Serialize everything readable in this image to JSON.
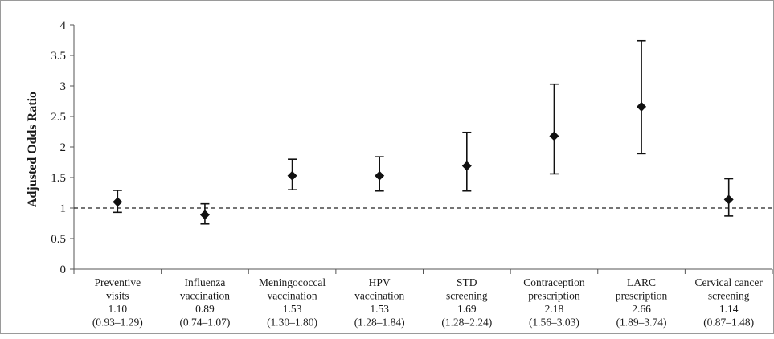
{
  "chart_data": {
    "type": "scatter",
    "ylabel": "Adjusted Odds Ratio",
    "ylim": [
      0,
      4
    ],
    "yticks": [
      "0",
      "0.5",
      "1",
      "1.5",
      "2",
      "2.5",
      "3",
      "3.5",
      "4"
    ],
    "reference_line": 1,
    "grid": false,
    "categories": [
      {
        "lines": [
          "Preventive",
          "visits"
        ],
        "value_label": "1.10",
        "ci_label": "(0.93–1.29)",
        "value": 1.1,
        "low": 0.93,
        "high": 1.29
      },
      {
        "lines": [
          "Influenza",
          "vaccination"
        ],
        "value_label": "0.89",
        "ci_label": "(0.74–1.07)",
        "value": 0.89,
        "low": 0.74,
        "high": 1.07
      },
      {
        "lines": [
          "Meningococcal",
          "vaccination"
        ],
        "value_label": "1.53",
        "ci_label": "(1.30–1.80)",
        "value": 1.53,
        "low": 1.3,
        "high": 1.8
      },
      {
        "lines": [
          "HPV",
          "vaccination"
        ],
        "value_label": "1.53",
        "ci_label": "(1.28–1.84)",
        "value": 1.53,
        "low": 1.28,
        "high": 1.84
      },
      {
        "lines": [
          "STD",
          "screening"
        ],
        "value_label": "1.69",
        "ci_label": "(1.28–2.24)",
        "value": 1.69,
        "low": 1.28,
        "high": 2.24
      },
      {
        "lines": [
          "Contraception",
          "prescription"
        ],
        "value_label": "2.18",
        "ci_label": "(1.56–3.03)",
        "value": 2.18,
        "low": 1.56,
        "high": 3.03
      },
      {
        "lines": [
          "LARC",
          "prescription"
        ],
        "value_label": "2.66",
        "ci_label": "(1.89–3.74)",
        "value": 2.66,
        "low": 1.89,
        "high": 3.74
      },
      {
        "lines": [
          "Cervical cancer",
          "screening"
        ],
        "value_label": "1.14",
        "ci_label": "(0.87–1.48)",
        "value": 1.14,
        "low": 0.87,
        "high": 1.48
      }
    ]
  }
}
